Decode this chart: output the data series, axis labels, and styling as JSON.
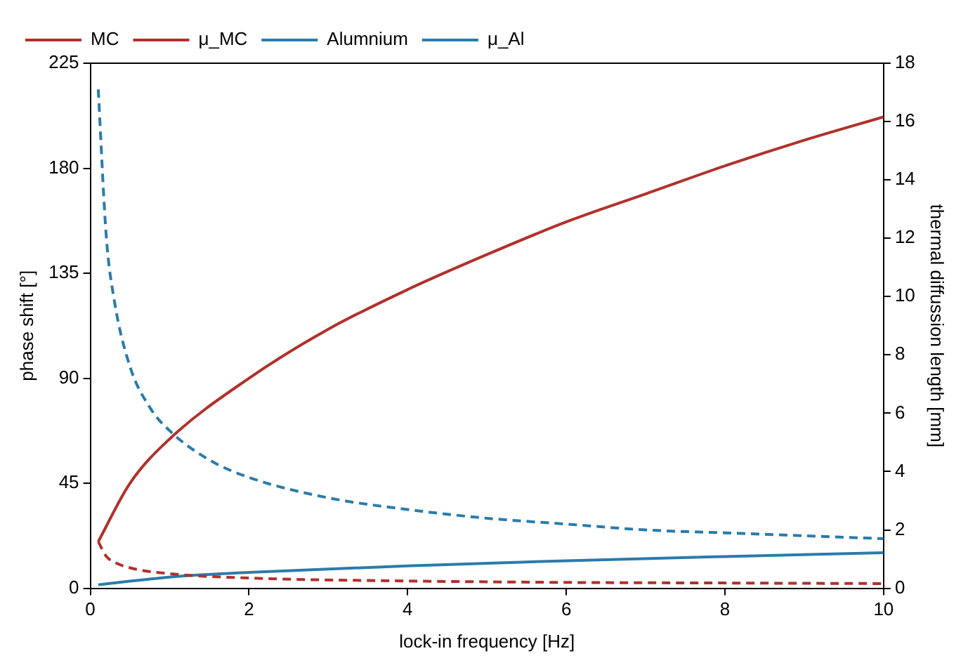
{
  "chart_data": {
    "type": "line",
    "xlabel": "lock-in frequency [Hz]",
    "ylabel": "phase shift [°]",
    "y2label": "thermal diffussion length [mm]",
    "xlim": [
      0,
      10
    ],
    "xticks": [
      0,
      2,
      4,
      6,
      8,
      10
    ],
    "ylim": [
      0,
      225
    ],
    "yticks": [
      0,
      45,
      90,
      135,
      180,
      225
    ],
    "y2lim": [
      0,
      18
    ],
    "y2ticks": [
      0,
      2,
      4,
      6,
      8,
      10,
      12,
      14,
      16,
      18
    ],
    "grid": false,
    "legend": "top left",
    "marker": "none",
    "series": [
      {
        "name": "MC",
        "color": "#b0312c",
        "line_style": "solid",
        "x": [
          0.1,
          0.5,
          1,
          2,
          3,
          4,
          5,
          6,
          7,
          8,
          9,
          10
        ],
        "values": [
          20,
          45,
          64,
          90,
          111,
          128,
          143,
          157,
          169,
          181,
          192,
          202
        ]
      },
      {
        "name": "μ_MC",
        "color": "#b0312c",
        "line_style": "dashed",
        "axis": "y2",
        "x": [
          0.1,
          0.2,
          0.3,
          0.5,
          1,
          2,
          4,
          6,
          8,
          10
        ],
        "values": [
          1.6,
          1.1,
          0.9,
          0.7,
          0.5,
          0.35,
          0.25,
          0.2,
          0.18,
          0.16
        ]
      },
      {
        "name": "Alumnium",
        "color": "#2b7bab",
        "line_style": "solid",
        "x": [
          0.1,
          1,
          2,
          4,
          6,
          8,
          10
        ],
        "values": [
          1.5,
          4.8,
          6.8,
          9.6,
          11.8,
          13.6,
          15.2
        ]
      },
      {
        "name": "μ_Al",
        "color": "#2b7bab",
        "line_style": "dashed",
        "axis": "y2",
        "x": [
          0.1,
          0.2,
          0.3,
          0.5,
          0.75,
          1,
          1.5,
          2,
          3,
          4,
          5,
          6,
          7,
          8,
          9,
          10
        ],
        "values": [
          17.1,
          12.1,
          9.9,
          7.6,
          6.2,
          5.4,
          4.4,
          3.8,
          3.1,
          2.7,
          2.4,
          2.2,
          2.0,
          1.9,
          1.8,
          1.7
        ]
      }
    ]
  }
}
